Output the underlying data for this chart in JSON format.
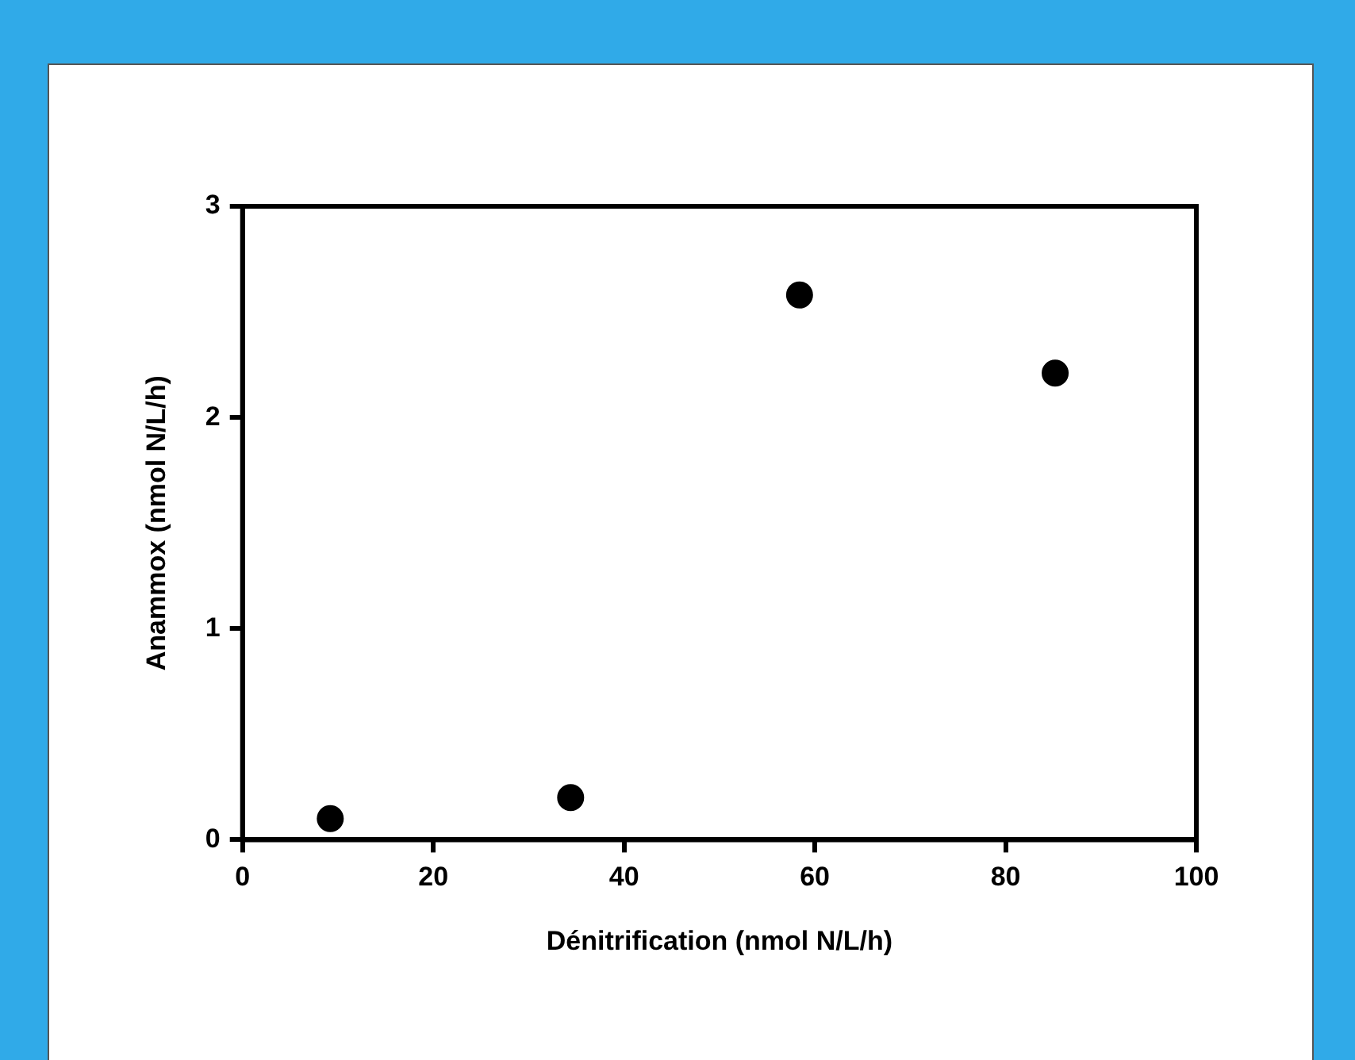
{
  "chart_data": {
    "type": "scatter",
    "xlabel": "Dénitrification (nmol N/L/h)",
    "ylabel": "Anammox (nmol N/L/h)",
    "x": [
      9.2,
      34.4,
      58.4,
      85.2
    ],
    "series": [
      {
        "color": "#000000",
        "values": [
          0.1,
          0.2,
          2.58,
          2.21
        ]
      }
    ],
    "xlim": [
      0,
      100
    ],
    "xticks": [
      0,
      20,
      40,
      60,
      80,
      100
    ],
    "ylim": [
      0,
      3
    ],
    "yticks": [
      0,
      1,
      2,
      3
    ],
    "grid": false,
    "legend": false,
    "marker": "circle"
  }
}
